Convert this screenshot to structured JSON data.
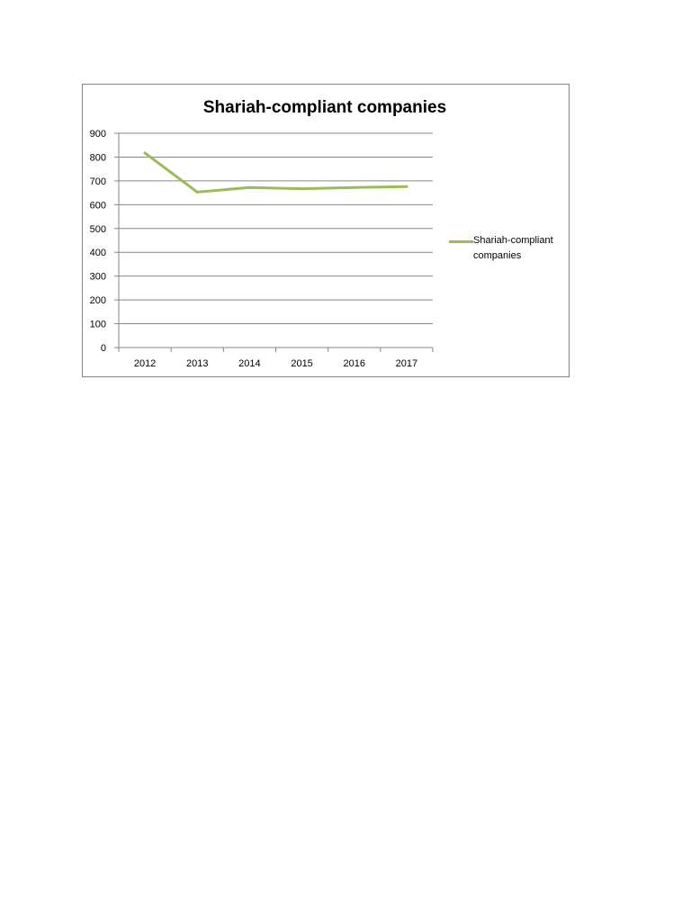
{
  "chart_data": {
    "type": "line",
    "title": "Shariah-compliant companies",
    "categories": [
      "2012",
      "2013",
      "2014",
      "2015",
      "2016",
      "2017"
    ],
    "series": [
      {
        "name": "Shariah-compliant companies",
        "values": [
          817,
          653,
          672,
          667,
          672,
          676
        ],
        "color": "#9bbb59"
      }
    ],
    "ylim": [
      0,
      900
    ],
    "yticks": [
      "0",
      "100",
      "200",
      "300",
      "400",
      "500",
      "600",
      "700",
      "800",
      "900"
    ],
    "grid": true,
    "legend": "right"
  }
}
